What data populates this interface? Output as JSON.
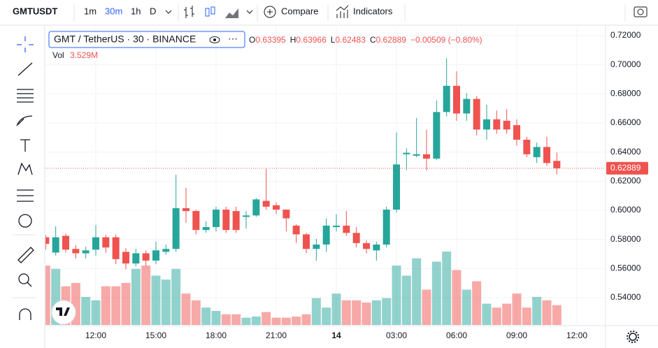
{
  "toolbar": {
    "symbol": "GMTUSDT",
    "intervals": [
      "1m",
      "30m",
      "1h",
      "D"
    ],
    "compare": "Compare",
    "indicators": "Indicators"
  },
  "chart_data": {
    "type": "candlestick",
    "title": "GMT / TetherUS · 30 · BINANCE",
    "ohlc_letters": [
      "O",
      "H",
      "L",
      "C"
    ],
    "change_label": "−0.00509 (−0.80%)",
    "up_color": "#26a69a",
    "down_color": "#ef5350",
    "categories": [
      null,
      null,
      null,
      null,
      null,
      "12:00",
      null,
      null,
      null,
      null,
      null,
      "15:00",
      null,
      null,
      null,
      null,
      null,
      "18:00",
      null,
      null,
      null,
      null,
      null,
      "21:00",
      null,
      null,
      null,
      null,
      null,
      "14",
      null,
      null,
      null,
      null,
      null,
      "03:00",
      null,
      null,
      null,
      null,
      null,
      "06:00",
      null,
      null,
      null,
      null,
      null,
      "09:00",
      null,
      null,
      null,
      null,
      null,
      "12:00"
    ],
    "open": [
      0.5815,
      0.571,
      0.5825,
      0.5735,
      0.5705,
      0.573,
      0.5815,
      0.5815,
      0.5715,
      0.5635,
      0.5705,
      0.5655,
      0.5715,
      0.5735,
      0.6015,
      0.5995,
      0.5865,
      0.5885,
      0.6005,
      0.5995,
      0.5955,
      0.5965,
      0.6065,
      0.6035,
      0.6005,
      0.5895,
      0.5835,
      0.5735,
      0.5765,
      0.5885,
      0.5895,
      0.5845,
      0.5775,
      0.5725,
      0.5765,
      0.6005,
      0.6385,
      0.6375,
      0.6385,
      0.6355,
      0.6675,
      0.6855,
      0.6665,
      0.6765,
      0.6555,
      0.6625,
      0.6615,
      0.6585,
      0.6485,
      0.6365,
      0.6435,
      0.63395,
      null,
      null
    ],
    "high": [
      0.583,
      0.589,
      0.584,
      0.576,
      0.575,
      0.59,
      0.583,
      0.5835,
      0.574,
      0.5735,
      0.5725,
      0.5785,
      0.5765,
      0.6245,
      0.6155,
      0.6005,
      0.5925,
      0.6025,
      0.6025,
      0.6025,
      0.5995,
      0.6085,
      0.6285,
      0.6055,
      0.6005,
      0.5905,
      0.5845,
      0.5805,
      0.5945,
      0.5975,
      0.5995,
      0.5885,
      0.5795,
      0.5785,
      0.6025,
      0.6535,
      0.6425,
      0.6635,
      0.6555,
      0.6755,
      0.7045,
      0.6955,
      0.6805,
      0.6785,
      0.6725,
      0.6685,
      0.6695,
      0.6625,
      0.6505,
      0.6465,
      0.6505,
      0.63966,
      null,
      null
    ],
    "low": [
      0.573,
      0.569,
      0.571,
      0.567,
      0.567,
      0.569,
      0.571,
      0.563,
      0.5595,
      0.5615,
      0.5615,
      0.563,
      0.5695,
      0.5715,
      0.5915,
      0.5835,
      0.5845,
      0.5855,
      0.5845,
      0.5845,
      0.5875,
      0.5955,
      0.6005,
      0.5975,
      0.5855,
      0.5775,
      0.5705,
      0.5655,
      0.5715,
      0.5855,
      0.5825,
      0.5745,
      0.5705,
      0.5655,
      0.5745,
      0.5985,
      0.6275,
      0.6365,
      0.6275,
      0.6345,
      0.6645,
      0.6615,
      0.6615,
      0.6515,
      0.6485,
      0.6525,
      0.6525,
      0.6445,
      0.6365,
      0.6325,
      0.6305,
      0.62483,
      null,
      null
    ],
    "close": [
      0.577,
      0.5815,
      0.573,
      0.5705,
      0.5725,
      0.5815,
      0.5745,
      0.5665,
      0.5635,
      0.5705,
      0.5655,
      0.5725,
      0.5735,
      0.6015,
      0.5995,
      0.5865,
      0.5885,
      0.6005,
      0.5865,
      0.5865,
      0.5965,
      0.6075,
      0.6025,
      0.6005,
      0.5945,
      0.5835,
      0.5735,
      0.5765,
      0.5895,
      0.5895,
      0.5845,
      0.5775,
      0.5735,
      0.5765,
      0.6005,
      0.6315,
      0.6395,
      0.6385,
      0.6355,
      0.6675,
      0.6855,
      0.6665,
      0.6765,
      0.6555,
      0.6625,
      0.6555,
      0.6555,
      0.6485,
      0.6385,
      0.6435,
      0.6325,
      0.62889,
      null,
      null
    ],
    "volume": {
      "name": "Vol",
      "last_label": "3.529M",
      "values": [
        10.6,
        10.0,
        6.9,
        7.5,
        5.0,
        4.4,
        6.9,
        6.9,
        7.5,
        10.0,
        10.6,
        8.8,
        8.1,
        10.0,
        5.6,
        4.4,
        3.1,
        2.5,
        1.9,
        1.9,
        1.3,
        1.5,
        2.3,
        1.3,
        1.3,
        1.5,
        1.9,
        4.8,
        3.1,
        5.6,
        4.4,
        4.4,
        4.0,
        4.4,
        4.8,
        10.6,
        8.8,
        11.9,
        6.3,
        11.3,
        13.1,
        9.8,
        6.3,
        7.8,
        3.8,
        3.1,
        3.8,
        5.6,
        3.1,
        5.0,
        4.4,
        3.529,
        null,
        null
      ]
    },
    "ylim": [
      0.5213,
      0.7262
    ],
    "yticks": [
      {
        "value": 0.54,
        "label": "0.54000"
      },
      {
        "value": 0.56,
        "label": "0.56000"
      },
      {
        "value": 0.58,
        "label": "0.58000"
      },
      {
        "value": 0.6,
        "label": "0.60000"
      },
      {
        "value": 0.62,
        "label": "0.62000"
      },
      {
        "value": 0.64,
        "label": "0.64000"
      },
      {
        "value": 0.66,
        "label": "0.66000"
      },
      {
        "value": 0.68,
        "label": "0.68000"
      },
      {
        "value": 0.7,
        "label": "0.70000"
      },
      {
        "value": 0.72,
        "label": "0.72000"
      }
    ],
    "grid": true
  }
}
